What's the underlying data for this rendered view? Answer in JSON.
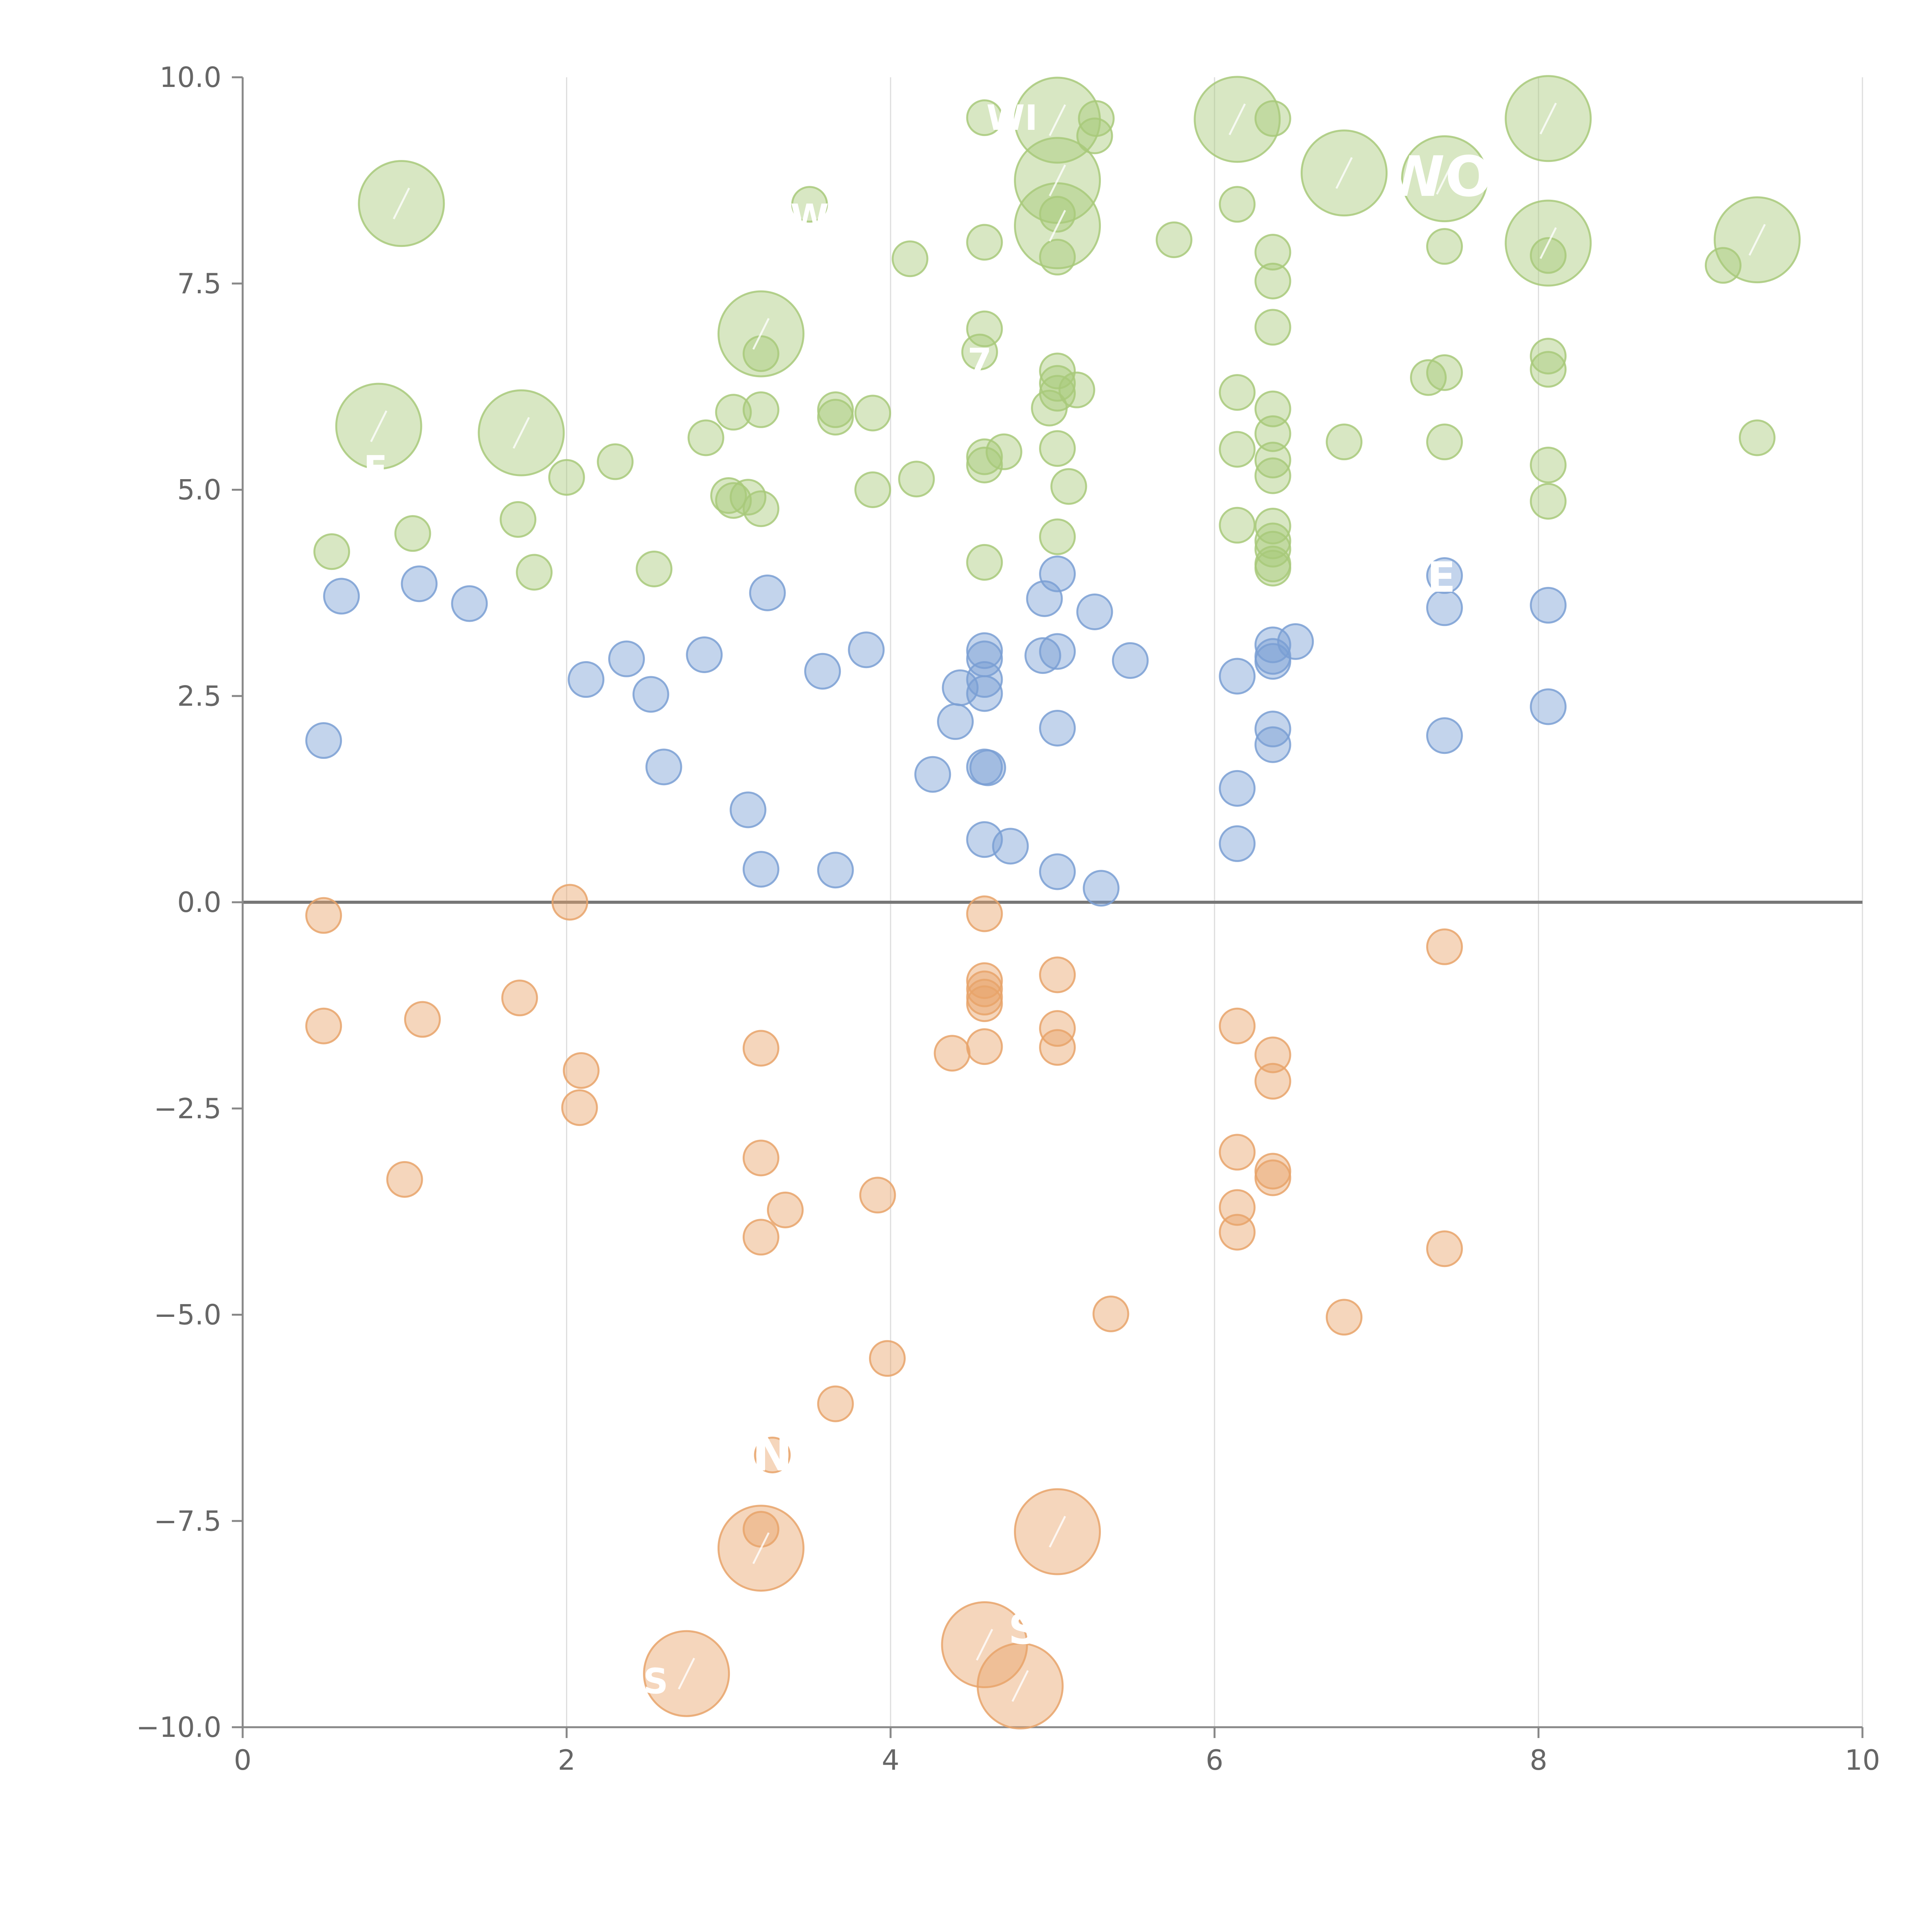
{
  "chart_data": {
    "type": "scatter",
    "title": "",
    "xlabel": "",
    "ylabel": "",
    "xlim": [
      0,
      10
    ],
    "ylim": [
      -10,
      10
    ],
    "x_ticks": [
      0,
      2,
      4,
      6,
      8,
      10
    ],
    "y_ticks": [
      -10,
      -7.5,
      -5,
      -2.5,
      0,
      2.5,
      5,
      7.5,
      10
    ],
    "x_tick_labels": [
      "0",
      "2",
      "4",
      "6",
      "8",
      "10"
    ],
    "y_tick_labels": [
      "−10.0",
      "−7.5",
      "−5.0",
      "−2.5",
      "0.0",
      "2.5",
      "5.0",
      "7.5",
      "10.0"
    ],
    "grid": "vertical at x ticks",
    "zero_line": true,
    "colors": {
      "positive_high": "#a8c97a",
      "positive_mid": "#7a9fd4",
      "negative": "#e8a36a",
      "axis": "#888888",
      "grid": "#dddddd",
      "zero_line": "#777777"
    },
    "series": [
      {
        "name": "green",
        "color": "#a8c97a",
        "points": [
          {
            "x": 0.98,
            "y": 8.47,
            "r": 3
          },
          {
            "x": 0.84,
            "y": 5.77,
            "r": 3
          },
          {
            "x": 1.72,
            "y": 5.69,
            "r": 3
          },
          {
            "x": 3.2,
            "y": 6.89,
            "r": 3
          },
          {
            "x": 5.03,
            "y": 9.48,
            "r": 3
          },
          {
            "x": 5.03,
            "y": 8.75,
            "r": 3
          },
          {
            "x": 5.03,
            "y": 8.2,
            "r": 3
          },
          {
            "x": 6.14,
            "y": 9.49,
            "r": 3
          },
          {
            "x": 6.8,
            "y": 8.84,
            "r": 3
          },
          {
            "x": 7.42,
            "y": 8.77,
            "r": 3
          },
          {
            "x": 8.06,
            "y": 9.5,
            "r": 3
          },
          {
            "x": 8.06,
            "y": 7.99,
            "r": 3
          },
          {
            "x": 9.35,
            "y": 8.03,
            "r": 3
          },
          {
            "x": 4.58,
            "y": 9.51,
            "r": 1
          },
          {
            "x": 5.27,
            "y": 9.5,
            "r": 1
          },
          {
            "x": 5.26,
            "y": 9.29,
            "r": 1
          },
          {
            "x": 6.36,
            "y": 9.5,
            "r": 1
          },
          {
            "x": 3.5,
            "y": 8.46,
            "r": 1
          },
          {
            "x": 5.03,
            "y": 8.34,
            "r": 1
          },
          {
            "x": 6.14,
            "y": 8.46,
            "r": 1
          },
          {
            "x": 4.58,
            "y": 8.0,
            "r": 1
          },
          {
            "x": 5.03,
            "y": 7.82,
            "r": 1
          },
          {
            "x": 5.75,
            "y": 8.03,
            "r": 1
          },
          {
            "x": 4.12,
            "y": 7.8,
            "r": 1
          },
          {
            "x": 6.36,
            "y": 7.88,
            "r": 1
          },
          {
            "x": 6.36,
            "y": 7.53,
            "r": 1
          },
          {
            "x": 7.42,
            "y": 7.95,
            "r": 1
          },
          {
            "x": 8.06,
            "y": 7.84,
            "r": 1
          },
          {
            "x": 9.14,
            "y": 7.72,
            "r": 1
          },
          {
            "x": 4.58,
            "y": 6.95,
            "r": 1
          },
          {
            "x": 6.36,
            "y": 6.97,
            "r": 1
          },
          {
            "x": 4.55,
            "y": 6.67,
            "r": 1
          },
          {
            "x": 3.2,
            "y": 6.65,
            "r": 1
          },
          {
            "x": 5.03,
            "y": 6.44,
            "r": 1
          },
          {
            "x": 5.03,
            "y": 6.29,
            "r": 1
          },
          {
            "x": 5.03,
            "y": 6.17,
            "r": 1
          },
          {
            "x": 5.15,
            "y": 6.21,
            "r": 1
          },
          {
            "x": 6.14,
            "y": 6.18,
            "r": 1
          },
          {
            "x": 7.32,
            "y": 6.36,
            "r": 1
          },
          {
            "x": 7.42,
            "y": 6.42,
            "r": 1
          },
          {
            "x": 8.06,
            "y": 6.62,
            "r": 1
          },
          {
            "x": 8.06,
            "y": 6.46,
            "r": 1
          },
          {
            "x": 3.03,
            "y": 5.94,
            "r": 1
          },
          {
            "x": 3.2,
            "y": 5.97,
            "r": 1
          },
          {
            "x": 3.66,
            "y": 5.97,
            "r": 1
          },
          {
            "x": 3.66,
            "y": 5.88,
            "r": 1
          },
          {
            "x": 3.89,
            "y": 5.93,
            "r": 1
          },
          {
            "x": 4.98,
            "y": 5.99,
            "r": 1
          },
          {
            "x": 6.36,
            "y": 5.98,
            "r": 1
          },
          {
            "x": 2.86,
            "y": 5.63,
            "r": 1
          },
          {
            "x": 2.3,
            "y": 5.34,
            "r": 1
          },
          {
            "x": 2.0,
            "y": 5.15,
            "r": 1
          },
          {
            "x": 4.16,
            "y": 5.13,
            "r": 1
          },
          {
            "x": 3.89,
            "y": 5.0,
            "r": 1
          },
          {
            "x": 4.58,
            "y": 5.3,
            "r": 1
          },
          {
            "x": 4.58,
            "y": 5.4,
            "r": 1
          },
          {
            "x": 4.7,
            "y": 5.46,
            "r": 1
          },
          {
            "x": 5.03,
            "y": 5.5,
            "r": 1
          },
          {
            "x": 5.1,
            "y": 5.04,
            "r": 1
          },
          {
            "x": 6.14,
            "y": 5.49,
            "r": 1
          },
          {
            "x": 6.36,
            "y": 5.68,
            "r": 1
          },
          {
            "x": 6.36,
            "y": 5.36,
            "r": 1
          },
          {
            "x": 6.36,
            "y": 5.17,
            "r": 1
          },
          {
            "x": 6.8,
            "y": 5.58,
            "r": 1
          },
          {
            "x": 7.42,
            "y": 5.58,
            "r": 1
          },
          {
            "x": 8.06,
            "y": 5.3,
            "r": 1
          },
          {
            "x": 8.06,
            "y": 4.86,
            "r": 1
          },
          {
            "x": 9.35,
            "y": 5.63,
            "r": 1
          },
          {
            "x": 0.55,
            "y": 4.25,
            "r": 1
          },
          {
            "x": 1.05,
            "y": 4.47,
            "r": 1
          },
          {
            "x": 1.7,
            "y": 4.64,
            "r": 1
          },
          {
            "x": 1.8,
            "y": 4.0,
            "r": 1
          },
          {
            "x": 2.54,
            "y": 4.04,
            "r": 1
          },
          {
            "x": 3.0,
            "y": 4.93,
            "r": 1
          },
          {
            "x": 3.03,
            "y": 4.87,
            "r": 1
          },
          {
            "x": 3.12,
            "y": 4.91,
            "r": 1
          },
          {
            "x": 3.2,
            "y": 4.77,
            "r": 1
          },
          {
            "x": 5.03,
            "y": 4.43,
            "r": 1
          },
          {
            "x": 4.58,
            "y": 4.12,
            "r": 1
          },
          {
            "x": 6.14,
            "y": 4.57,
            "r": 1
          },
          {
            "x": 6.36,
            "y": 4.56,
            "r": 1
          },
          {
            "x": 6.36,
            "y": 4.38,
            "r": 1
          },
          {
            "x": 6.36,
            "y": 4.28,
            "r": 1
          },
          {
            "x": 6.36,
            "y": 4.1,
            "r": 1
          },
          {
            "x": 6.36,
            "y": 4.05,
            "r": 1
          }
        ]
      },
      {
        "name": "blue",
        "color": "#7a9fd4",
        "points": [
          {
            "x": 0.61,
            "y": 3.71,
            "r": 1
          },
          {
            "x": 1.09,
            "y": 3.86,
            "r": 1
          },
          {
            "x": 1.4,
            "y": 3.62,
            "r": 1
          },
          {
            "x": 0.5,
            "y": 1.96,
            "r": 1
          },
          {
            "x": 2.12,
            "y": 2.7,
            "r": 1
          },
          {
            "x": 2.37,
            "y": 2.95,
            "r": 1
          },
          {
            "x": 2.52,
            "y": 2.52,
            "r": 1
          },
          {
            "x": 2.6,
            "y": 1.64,
            "r": 1
          },
          {
            "x": 2.85,
            "y": 3.0,
            "r": 1
          },
          {
            "x": 3.24,
            "y": 3.75,
            "r": 1
          },
          {
            "x": 3.12,
            "y": 1.12,
            "r": 1
          },
          {
            "x": 3.2,
            "y": 0.4,
            "r": 1
          },
          {
            "x": 3.58,
            "y": 2.8,
            "r": 1
          },
          {
            "x": 3.66,
            "y": 0.39,
            "r": 1
          },
          {
            "x": 3.85,
            "y": 3.06,
            "r": 1
          },
          {
            "x": 4.26,
            "y": 1.55,
            "r": 1
          },
          {
            "x": 4.4,
            "y": 2.19,
            "r": 1
          },
          {
            "x": 4.43,
            "y": 2.6,
            "r": 1
          },
          {
            "x": 4.58,
            "y": 3.05,
            "r": 1
          },
          {
            "x": 4.58,
            "y": 2.95,
            "r": 1
          },
          {
            "x": 4.58,
            "y": 2.7,
            "r": 1
          },
          {
            "x": 4.58,
            "y": 2.53,
            "r": 1
          },
          {
            "x": 4.58,
            "y": 1.64,
            "r": 1
          },
          {
            "x": 4.6,
            "y": 1.63,
            "r": 1
          },
          {
            "x": 4.58,
            "y": 0.76,
            "r": 1
          },
          {
            "x": 4.74,
            "y": 0.68,
            "r": 1
          },
          {
            "x": 4.95,
            "y": 3.68,
            "r": 1
          },
          {
            "x": 5.03,
            "y": 3.98,
            "r": 1
          },
          {
            "x": 4.94,
            "y": 2.99,
            "r": 1
          },
          {
            "x": 5.03,
            "y": 3.04,
            "r": 1
          },
          {
            "x": 5.03,
            "y": 2.11,
            "r": 1
          },
          {
            "x": 5.03,
            "y": 0.37,
            "r": 1
          },
          {
            "x": 5.26,
            "y": 3.52,
            "r": 1
          },
          {
            "x": 5.48,
            "y": 2.93,
            "r": 1
          },
          {
            "x": 5.3,
            "y": 0.17,
            "r": 1
          },
          {
            "x": 6.14,
            "y": 2.74,
            "r": 1
          },
          {
            "x": 6.14,
            "y": 1.38,
            "r": 1
          },
          {
            "x": 6.14,
            "y": 0.71,
            "r": 1
          },
          {
            "x": 6.36,
            "y": 3.12,
            "r": 1
          },
          {
            "x": 6.36,
            "y": 2.98,
            "r": 1
          },
          {
            "x": 6.36,
            "y": 2.92,
            "r": 1
          },
          {
            "x": 6.36,
            "y": 2.1,
            "r": 1
          },
          {
            "x": 6.36,
            "y": 1.91,
            "r": 1
          },
          {
            "x": 6.5,
            "y": 3.16,
            "r": 1
          },
          {
            "x": 7.42,
            "y": 3.96,
            "r": 1
          },
          {
            "x": 7.42,
            "y": 3.57,
            "r": 1
          },
          {
            "x": 7.42,
            "y": 2.02,
            "r": 1
          },
          {
            "x": 8.06,
            "y": 3.6,
            "r": 1
          },
          {
            "x": 8.06,
            "y": 2.37,
            "r": 1
          }
        ]
      },
      {
        "name": "orange",
        "color": "#e8a36a",
        "points": [
          {
            "x": 0.5,
            "y": -0.16,
            "r": 1
          },
          {
            "x": 0.5,
            "y": -1.5,
            "r": 1
          },
          {
            "x": 1.11,
            "y": -1.42,
            "r": 1
          },
          {
            "x": 1.71,
            "y": -1.16,
            "r": 1
          },
          {
            "x": 1.0,
            "y": -3.36,
            "r": 1
          },
          {
            "x": 2.02,
            "y": 0.0,
            "r": 1
          },
          {
            "x": 2.09,
            "y": -2.04,
            "r": 1
          },
          {
            "x": 2.08,
            "y": -2.49,
            "r": 1
          },
          {
            "x": 3.2,
            "y": -1.77,
            "r": 1
          },
          {
            "x": 3.2,
            "y": -3.1,
            "r": 1
          },
          {
            "x": 3.2,
            "y": -4.06,
            "r": 1
          },
          {
            "x": 3.35,
            "y": -3.73,
            "r": 1
          },
          {
            "x": 3.92,
            "y": -3.55,
            "r": 1
          },
          {
            "x": 3.98,
            "y": -5.53,
            "r": 1
          },
          {
            "x": 3.66,
            "y": -6.08,
            "r": 1
          },
          {
            "x": 3.27,
            "y": -6.7,
            "r": 1
          },
          {
            "x": 3.2,
            "y": -7.6,
            "r": 1
          },
          {
            "x": 4.58,
            "y": -0.14,
            "r": 1
          },
          {
            "x": 4.58,
            "y": -0.95,
            "r": 1
          },
          {
            "x": 4.58,
            "y": -1.05,
            "r": 1
          },
          {
            "x": 4.58,
            "y": -1.15,
            "r": 1
          },
          {
            "x": 4.58,
            "y": -1.23,
            "r": 1
          },
          {
            "x": 4.58,
            "y": -1.75,
            "r": 1
          },
          {
            "x": 4.38,
            "y": -1.83,
            "r": 1
          },
          {
            "x": 5.03,
            "y": -0.88,
            "r": 1
          },
          {
            "x": 5.03,
            "y": -1.53,
            "r": 1
          },
          {
            "x": 5.03,
            "y": -1.76,
            "r": 1
          },
          {
            "x": 5.36,
            "y": -4.99,
            "r": 1
          },
          {
            "x": 6.14,
            "y": -1.5,
            "r": 1
          },
          {
            "x": 6.14,
            "y": -3.03,
            "r": 1
          },
          {
            "x": 6.14,
            "y": -3.7,
            "r": 1
          },
          {
            "x": 6.14,
            "y": -4.0,
            "r": 1
          },
          {
            "x": 6.36,
            "y": -1.85,
            "r": 1
          },
          {
            "x": 6.36,
            "y": -2.17,
            "r": 1
          },
          {
            "x": 6.36,
            "y": -3.26,
            "r": 1
          },
          {
            "x": 6.36,
            "y": -3.34,
            "r": 1
          },
          {
            "x": 6.8,
            "y": -5.03,
            "r": 1
          },
          {
            "x": 7.42,
            "y": -0.54,
            "r": 1
          },
          {
            "x": 7.42,
            "y": -4.2,
            "r": 1
          },
          {
            "x": 3.2,
            "y": -7.83,
            "r": 3
          },
          {
            "x": 5.03,
            "y": -7.63,
            "r": 3
          },
          {
            "x": 4.58,
            "y": -9.0,
            "r": 3
          },
          {
            "x": 4.8,
            "y": -9.5,
            "r": 3
          },
          {
            "x": 2.74,
            "y": -9.35,
            "r": 3
          }
        ]
      }
    ],
    "annotations": [
      {
        "text": "WI",
        "x": 4.75,
        "y": 9.55,
        "size": 1
      },
      {
        "text": "WO",
        "x": 7.38,
        "y": 8.75,
        "size": 1.6
      },
      {
        "text": "W",
        "x": 3.5,
        "y": 8.35,
        "size": 1
      },
      {
        "text": "7",
        "x": 4.55,
        "y": 6.6,
        "size": 1
      },
      {
        "text": "E",
        "x": 0.82,
        "y": 5.3,
        "size": 1
      },
      {
        "text": "E",
        "x": 7.4,
        "y": 3.95,
        "size": 1.2
      },
      {
        "text": "N",
        "x": 3.27,
        "y": -6.7,
        "size": 1.4
      },
      {
        "text": "S",
        "x": 4.82,
        "y": -8.8,
        "size": 1.2
      },
      {
        "text": "S",
        "x": 2.55,
        "y": -9.4,
        "size": 1
      }
    ]
  }
}
